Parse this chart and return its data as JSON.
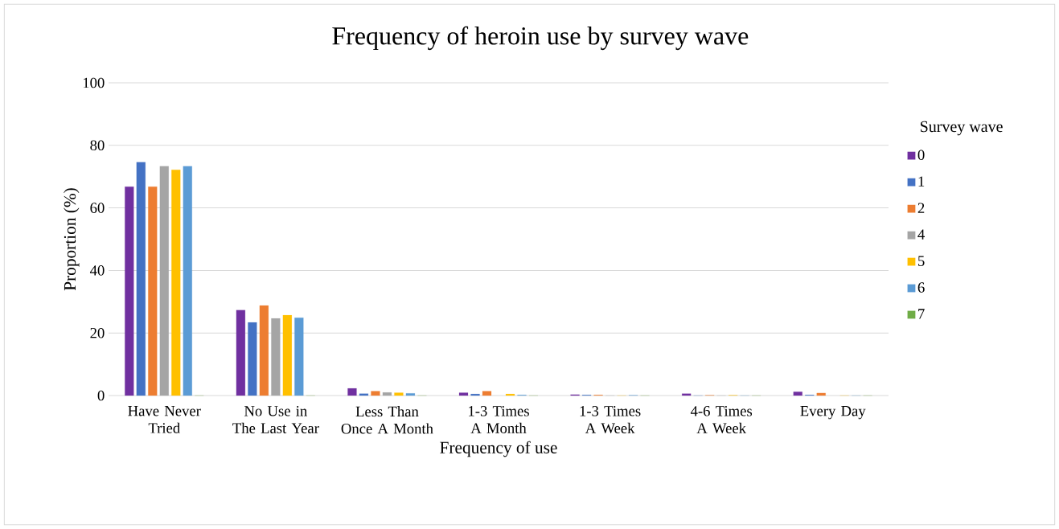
{
  "chart_data": {
    "type": "bar",
    "title": "Frequency of heroin use by survey wave",
    "xlabel": "Frequency of use",
    "ylabel": "Proportion (%)",
    "legend_title": "Survey wave",
    "categories": [
      "Have Never Tried",
      "No Use in The Last Year",
      "Less Than Once A Month",
      "1-3 Times A Month",
      "1-3 Times A Week",
      "4-6 Times A Week",
      "Every Day"
    ],
    "series": [
      {
        "name": "0",
        "color": "#7030a0",
        "values": [
          66.8,
          27.3,
          2.3,
          0.9,
          0.3,
          0.6,
          1.2
        ]
      },
      {
        "name": "1",
        "color": "#4472c4",
        "values": [
          74.6,
          23.4,
          0.6,
          0.5,
          0.2,
          0,
          0.2
        ]
      },
      {
        "name": "2",
        "color": "#ed7d31",
        "values": [
          66.8,
          28.8,
          1.4,
          1.4,
          0.2,
          0.1,
          0.8
        ]
      },
      {
        "name": "4",
        "color": "#a5a5a5",
        "values": [
          73.3,
          24.7,
          1.0,
          null,
          0,
          0,
          null
        ]
      },
      {
        "name": "5",
        "color": "#ffc000",
        "values": [
          72.2,
          25.7,
          0.9,
          0.5,
          0,
          0.1,
          0
        ]
      },
      {
        "name": "6",
        "color": "#5b9bd5",
        "values": [
          73.3,
          24.9,
          0.7,
          0.2,
          0.1,
          0,
          0
        ]
      },
      {
        "name": "7",
        "color": "#70ad47",
        "values": [
          0,
          0,
          0,
          0,
          0,
          0,
          0
        ]
      }
    ],
    "ylim": [
      0,
      100
    ],
    "yticks": [
      0,
      20,
      40,
      60,
      80,
      100
    ],
    "grid": "y",
    "legend": "right"
  }
}
